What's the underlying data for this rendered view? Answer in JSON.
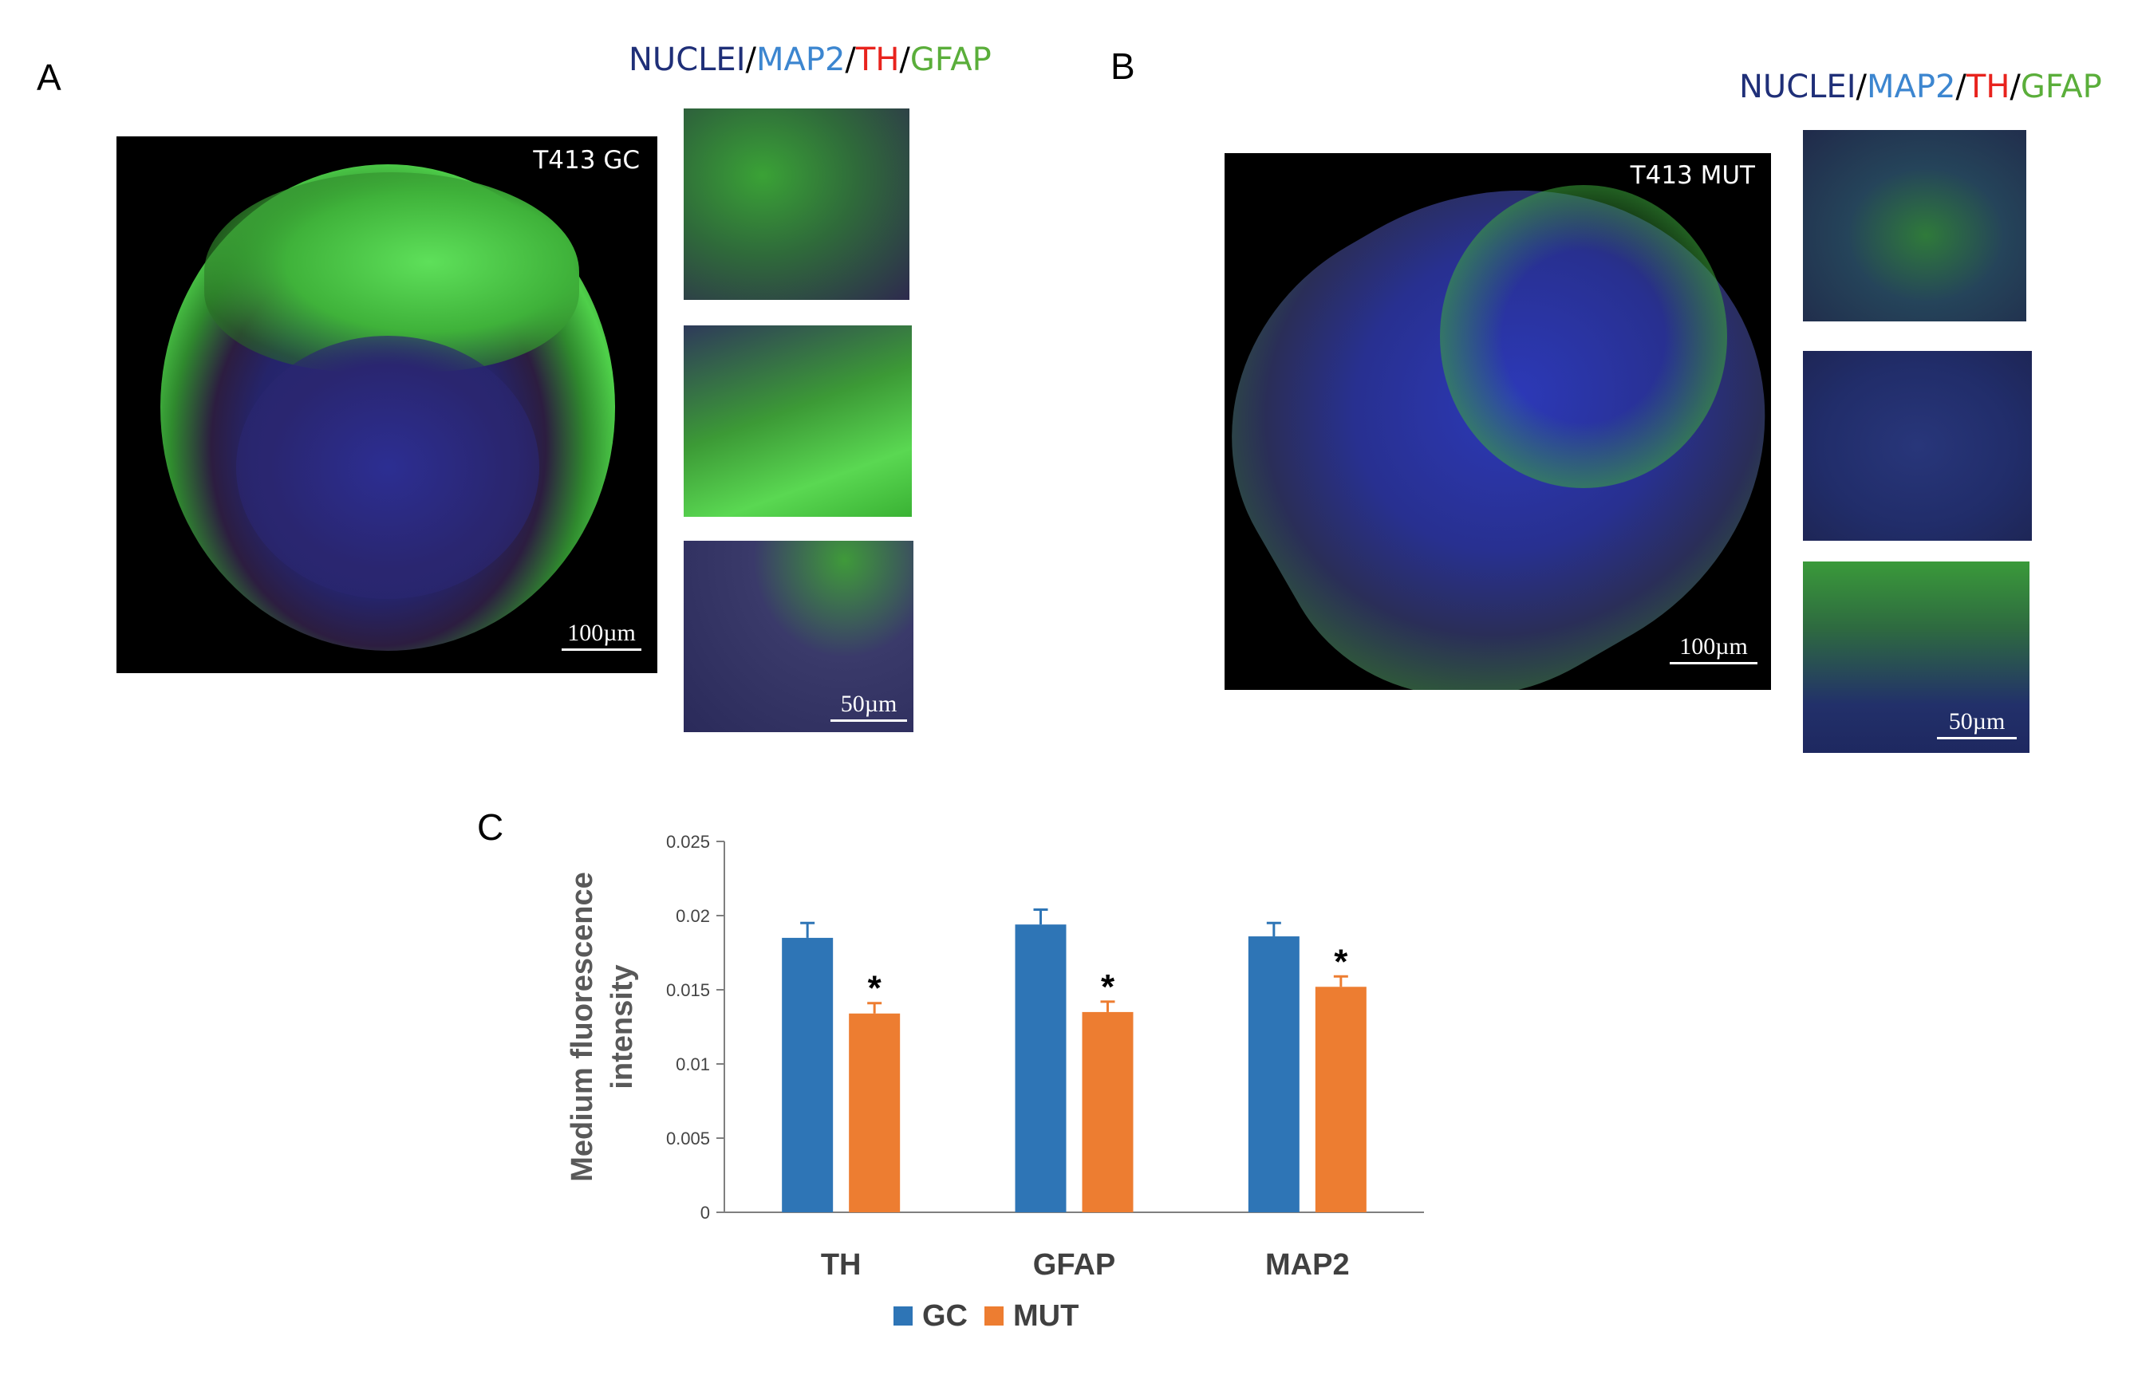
{
  "panels": {
    "a": {
      "label": "A",
      "stain": {
        "nuclei": "NUCLEI",
        "map2": "MAP2",
        "th": "TH",
        "gfap": "GFAP",
        "sep": "/"
      },
      "main_label": "T413  GC",
      "main_scale": "100µm",
      "inset_scale": "50µm"
    },
    "b": {
      "label": "B",
      "stain": {
        "nuclei": "NUCLEI",
        "map2": "MAP2",
        "th": "TH",
        "gfap": "GFAP",
        "sep": "/"
      },
      "main_label": "T413  MUT",
      "main_scale": "100µm",
      "inset_scale": "50µm"
    },
    "c": {
      "label": "C"
    }
  },
  "colors": {
    "nuclei": "#1f2f78",
    "map2": "#3c86d0",
    "th": "#e8231d",
    "gfap": "#5aae3a",
    "gc": "#2e75b6",
    "mut": "#ed7d31"
  },
  "chart_data": {
    "type": "bar",
    "categories": [
      "TH",
      "GFAP",
      "MAP2"
    ],
    "series": [
      {
        "name": "GC",
        "values": [
          0.0185,
          0.0194,
          0.0186
        ],
        "errors": [
          0.001,
          0.001,
          0.0009
        ],
        "color": "#2e75b6"
      },
      {
        "name": "MUT",
        "values": [
          0.0134,
          0.0135,
          0.0152
        ],
        "errors": [
          0.0007,
          0.0007,
          0.0007
        ],
        "color": "#ed7d31"
      }
    ],
    "significance": [
      "*",
      "*",
      "*"
    ],
    "ylabel": "Medium fluorescence intensity",
    "yticks": [
      "0",
      "0.005",
      "0.01",
      "0.015",
      "0.02",
      "0.025"
    ],
    "ylim": [
      0,
      0.025
    ],
    "legend_position": "bottom",
    "grid": false
  }
}
